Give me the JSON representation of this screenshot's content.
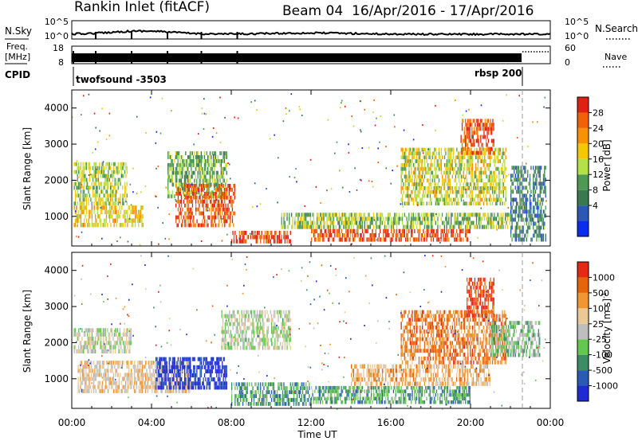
{
  "header": {
    "station": "Rankin Inlet (fitACF)",
    "beam": "Beam 04",
    "dates": "16/Apr/2016 - 17/Apr/2016"
  },
  "strips": {
    "nsky_label": "N.Sky",
    "nsearch_label": "N.Search",
    "noise_ticks_left": [
      "10^5",
      "10^0"
    ],
    "noise_ticks_right": [
      "10^5",
      "10^0"
    ],
    "freq_label_1": "Freq.",
    "freq_label_2": "[MHz]",
    "freq_ticks": [
      "18",
      "8"
    ],
    "nave_label": "Nave",
    "nave_ticks": [
      "60",
      "0"
    ],
    "cpid_label": "CPID",
    "cpid_entries": [
      "twofsound -3503",
      "rbsp 200"
    ]
  },
  "colors": {
    "power": [
      "#0a2cf0",
      "#2c58b4",
      "#3a7850",
      "#4e9a55",
      "#b4e04a",
      "#f5c800",
      "#f79200",
      "#f2600a",
      "#e02010"
    ],
    "velocity": [
      "#1e2ad2",
      "#2a5ab4",
      "#3c8c64",
      "#64c850",
      "#bebebe",
      "#ebc896",
      "#f09632",
      "#e6640a",
      "#e62814"
    ]
  },
  "chart_data": [
    {
      "type": "heatmap",
      "parameter": "Power",
      "ylabel": "Slant Range [km]",
      "xlabel": "",
      "colorbar_label": "Power [dB]",
      "colorbar_ticks": [
        "28",
        "24",
        "20",
        "16",
        "12",
        "8",
        "4"
      ],
      "y_ticks": [
        "4000",
        "3000",
        "2000",
        "1000"
      ],
      "ylim": [
        180,
        4500
      ],
      "xlim": [
        "00:00",
        "24:00"
      ],
      "x_ticks": [
        "00:00",
        "04:00",
        "08:00",
        "12:00",
        "16:00",
        "20:00",
        "00:00"
      ],
      "regions": [
        {
          "t": [
            0.1,
            2.8
          ],
          "r": [
            1300,
            2500
          ],
          "level": 0.5
        },
        {
          "t": [
            0.1,
            3.6
          ],
          "r": [
            700,
            1300
          ],
          "level": 0.62
        },
        {
          "t": [
            4.8,
            7.8
          ],
          "r": [
            1500,
            2800
          ],
          "level": 0.4
        },
        {
          "t": [
            5.2,
            8.2
          ],
          "r": [
            700,
            1900
          ],
          "level": 0.85
        },
        {
          "t": [
            8.0,
            11.0
          ],
          "r": [
            250,
            600
          ],
          "level": 0.92
        },
        {
          "t": [
            12.0,
            20.0
          ],
          "r": [
            300,
            650
          ],
          "level": 0.9
        },
        {
          "t": [
            10.5,
            22.0
          ],
          "r": [
            650,
            1100
          ],
          "level": 0.45
        },
        {
          "t": [
            16.5,
            21.8
          ],
          "r": [
            1300,
            2900
          ],
          "level": 0.55
        },
        {
          "t": [
            19.5,
            21.2
          ],
          "r": [
            2700,
            3700
          ],
          "level": 0.88
        },
        {
          "t": [
            22.0,
            23.8
          ],
          "r": [
            300,
            2400
          ],
          "level": 0.28
        }
      ]
    },
    {
      "type": "heatmap",
      "parameter": "Velocity",
      "ylabel": "Slant Range [km]",
      "xlabel": "Time UT",
      "colorbar_label": "Velocity [m s^-1]",
      "colorbar_ticks": [
        "1000",
        "500",
        "100",
        "25",
        "-25",
        "-100",
        "-500",
        "-1000"
      ],
      "y_ticks": [
        "4000",
        "3000",
        "2000",
        "1000"
      ],
      "ylim": [
        180,
        4500
      ],
      "xlim": [
        "00:00",
        "24:00"
      ],
      "x_ticks": [
        "00:00",
        "04:00",
        "08:00",
        "12:00",
        "16:00",
        "20:00",
        "00:00"
      ],
      "regions": [
        {
          "t": [
            0.1,
            3.0
          ],
          "r": [
            1700,
            2400
          ],
          "level": 0.5
        },
        {
          "t": [
            0.3,
            6.0
          ],
          "r": [
            600,
            1500
          ],
          "level": 0.6
        },
        {
          "t": [
            4.2,
            7.8
          ],
          "r": [
            700,
            1600
          ],
          "level": 0.05
        },
        {
          "t": [
            7.5,
            11.0
          ],
          "r": [
            1800,
            2900
          ],
          "level": 0.48
        },
        {
          "t": [
            8.0,
            12.0
          ],
          "r": [
            250,
            900
          ],
          "level": 0.3
        },
        {
          "t": [
            12.0,
            20.0
          ],
          "r": [
            300,
            800
          ],
          "level": 0.33
        },
        {
          "t": [
            14.0,
            21.0
          ],
          "r": [
            800,
            1400
          ],
          "level": 0.68
        },
        {
          "t": [
            16.5,
            21.8
          ],
          "r": [
            1400,
            2900
          ],
          "level": 0.78
        },
        {
          "t": [
            19.8,
            21.2
          ],
          "r": [
            2700,
            3800
          ],
          "level": 0.9
        },
        {
          "t": [
            21.0,
            23.5
          ],
          "r": [
            1600,
            2600
          ],
          "level": 0.4
        }
      ]
    }
  ]
}
